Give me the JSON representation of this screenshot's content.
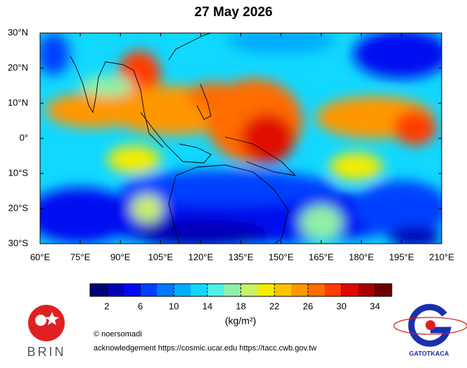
{
  "chart_data": {
    "type": "contour-map",
    "title": "27 May 2026",
    "xlim": [
      60,
      210
    ],
    "ylim": [
      -30,
      30
    ],
    "xticks": [
      {
        "value": 60,
        "label": "60°E"
      },
      {
        "value": 75,
        "label": "75°E"
      },
      {
        "value": 90,
        "label": "90°E"
      },
      {
        "value": 105,
        "label": "105°E"
      },
      {
        "value": 120,
        "label": "120°E"
      },
      {
        "value": 135,
        "label": "135°E"
      },
      {
        "value": 150,
        "label": "150°E"
      },
      {
        "value": 165,
        "label": "165°E"
      },
      {
        "value": 180,
        "label": "180°E"
      },
      {
        "value": 195,
        "label": "195°E"
      },
      {
        "value": 210,
        "label": "210°E"
      }
    ],
    "yticks": [
      {
        "value": -30,
        "label": "30°S"
      },
      {
        "value": -20,
        "label": "20°S"
      },
      {
        "value": -10,
        "label": "10°S"
      },
      {
        "value": 0,
        "label": "0°"
      },
      {
        "value": 10,
        "label": "10°N"
      },
      {
        "value": 20,
        "label": "20°N"
      },
      {
        "value": 30,
        "label": "30°N"
      }
    ],
    "colorbar": {
      "lim": [
        0,
        36
      ],
      "ticks": [
        2,
        6,
        10,
        14,
        18,
        22,
        26,
        30,
        34
      ],
      "unit": "(kg/m²)",
      "colors": [
        "#00007a",
        "#0000b4",
        "#0008f0",
        "#0040ff",
        "#0078ff",
        "#00acff",
        "#10d8ff",
        "#50f0e8",
        "#90f0a8",
        "#c8f068",
        "#f4ec00",
        "#ffc400",
        "#ff9800",
        "#ff6c00",
        "#ff3c00",
        "#e00a00",
        "#a80000",
        "#6c0000"
      ]
    }
  },
  "credits": {
    "author": "© noersomadi",
    "acknowledgement": "acknowledgement https://cosmic.ucar.edu  https://tacc.cwb.gov.tw"
  },
  "logos": {
    "left": "BRIN",
    "right": "GATOTKACA"
  }
}
